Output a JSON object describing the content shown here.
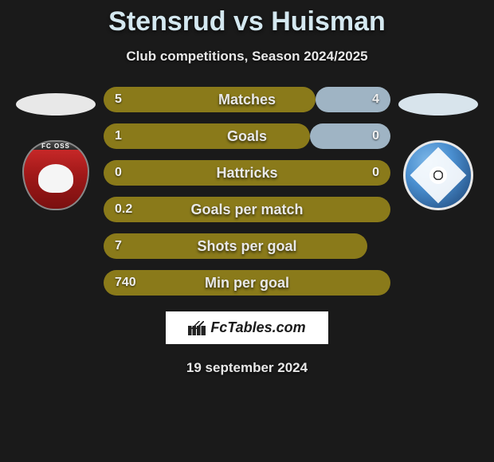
{
  "title": "Stensrud vs Huisman",
  "subtitle": "Club competitions, Season 2024/2025",
  "colors": {
    "bar_left": "#8a7a1a",
    "bar_right": "#9fb4c4",
    "title": "#d4e8f0",
    "oval_left": "#e8e8e8",
    "oval_right": "#d8e4ec"
  },
  "stats": [
    {
      "label": "Matches",
      "left_val": "5",
      "right_val": "4",
      "left_pct": 74,
      "right_pct": 26
    },
    {
      "label": "Goals",
      "left_val": "1",
      "right_val": "0",
      "left_pct": 72,
      "right_pct": 28
    },
    {
      "label": "Hattricks",
      "left_val": "0",
      "right_val": "0",
      "left_pct": 100,
      "right_pct": 0
    },
    {
      "label": "Goals per match",
      "left_val": "0.2",
      "right_val": "",
      "left_pct": 100,
      "right_pct": 0
    },
    {
      "label": "Shots per goal",
      "left_val": "7",
      "right_val": "",
      "left_pct": 92,
      "right_pct": 0
    },
    {
      "label": "Min per goal",
      "left_val": "740",
      "right_val": "",
      "left_pct": 100,
      "right_pct": 0
    }
  ],
  "brand": "FcTables.com",
  "date": "19 september 2024"
}
